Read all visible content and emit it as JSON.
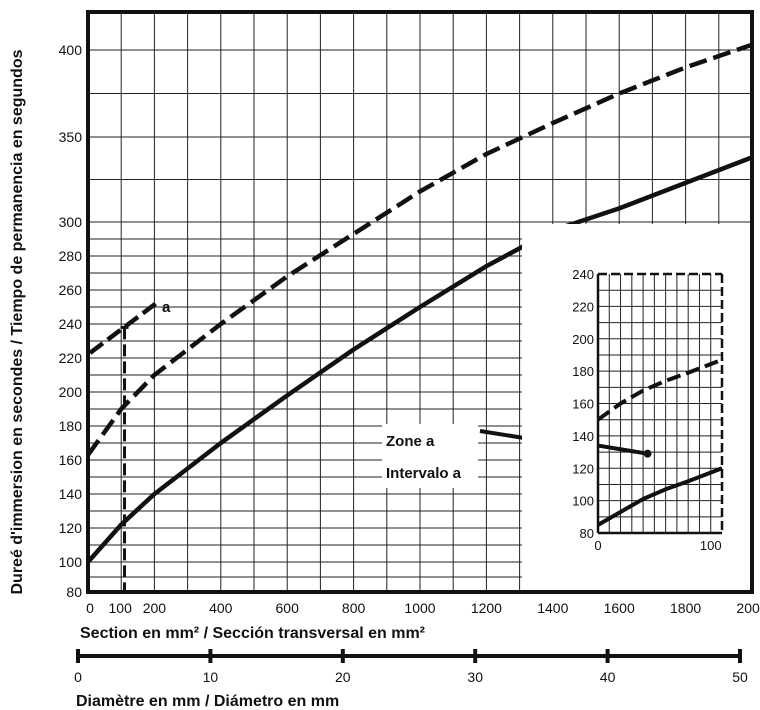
{
  "chart_data": {
    "type": "line",
    "ylabel": "Dureé d'immersion en secondes / Tiempo de permanencia en segundos",
    "xlabel": "Section en mm² / Sección transversal en mm²",
    "x2label": "Diamètre en mm / Diámetro en mm",
    "xlim": [
      0,
      2000
    ],
    "ylim": [
      80,
      420
    ],
    "x_ticks": [
      0,
      100,
      200,
      400,
      600,
      800,
      1000,
      1200,
      1400,
      1600,
      1800,
      2000
    ],
    "y_ticks": [
      80,
      100,
      120,
      140,
      160,
      180,
      200,
      220,
      240,
      260,
      280,
      300,
      350,
      400
    ],
    "x2_ticks": [
      0,
      10,
      20,
      30,
      40,
      50
    ],
    "grid": true,
    "series": [
      {
        "style": "dashed",
        "x": [
          0,
          100,
          200,
          400,
          600,
          800,
          1000,
          1200,
          1400,
          1600,
          1800,
          2000
        ],
        "y": [
          163,
          190,
          210,
          240,
          268,
          293,
          318,
          340,
          358,
          375,
          390,
          403
        ]
      },
      {
        "style": "solid",
        "x": [
          0,
          100,
          200,
          400,
          600,
          800,
          1000,
          1200,
          1400,
          1600,
          1800,
          2000
        ],
        "y": [
          100,
          122,
          140,
          170,
          198,
          225,
          250,
          274,
          295,
          308,
          323,
          338
        ]
      }
    ],
    "reference_line": {
      "x": 110
    },
    "annotations": [
      {
        "text": "a"
      },
      {
        "text": "Zone a"
      },
      {
        "text": "Intervalo a"
      }
    ],
    "inset": {
      "xlim": [
        0,
        110
      ],
      "ylim": [
        80,
        240
      ],
      "x_ticks": [
        0,
        100
      ],
      "y_ticks": [
        80,
        100,
        120,
        140,
        160,
        180,
        200,
        220,
        240
      ],
      "series": [
        {
          "style": "dashed",
          "x": [
            0,
            20,
            40,
            60,
            80,
            110
          ],
          "y": [
            150,
            160,
            168,
            174,
            179,
            187
          ]
        },
        {
          "style": "solid",
          "x": [
            0,
            20,
            40,
            60,
            80,
            110
          ],
          "y": [
            85,
            93,
            101,
            107,
            112,
            120
          ]
        }
      ]
    }
  }
}
